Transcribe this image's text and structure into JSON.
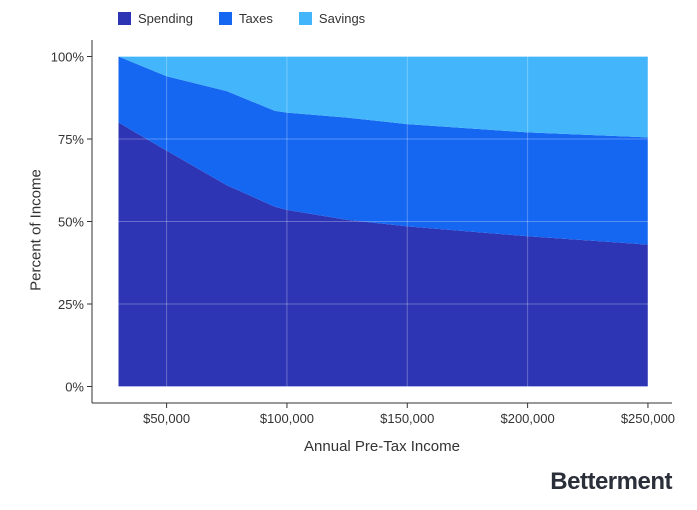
{
  "legend": {
    "items": [
      {
        "label": "Spending",
        "color": "#2d35b4"
      },
      {
        "label": "Taxes",
        "color": "#1567f2"
      },
      {
        "label": "Savings",
        "color": "#43b6fb"
      }
    ]
  },
  "brand": "Betterment",
  "chart_data": {
    "type": "area",
    "stacked": true,
    "normalized": true,
    "xlabel": "Annual Pre-Tax Income",
    "ylabel": "Percent of Income",
    "x": [
      30000,
      50000,
      75000,
      95000,
      100000,
      125000,
      150000,
      200000,
      250000
    ],
    "series": [
      {
        "name": "Spending",
        "color": "#2d35b4",
        "values": [
          80,
          71.5,
          61,
          54.5,
          53.5,
          50.5,
          48.5,
          45.5,
          43
        ]
      },
      {
        "name": "Taxes",
        "color": "#1567f2",
        "values": [
          20,
          22.5,
          28.5,
          29,
          29.5,
          31,
          31,
          31.5,
          32.5
        ]
      },
      {
        "name": "Savings",
        "color": "#43b6fb",
        "values": [
          0,
          6,
          10.5,
          16.5,
          17,
          18.5,
          20.5,
          23,
          24.5
        ]
      }
    ],
    "xticks": [
      50000,
      100000,
      150000,
      200000,
      250000
    ],
    "xtick_labels": [
      "$50,000",
      "$100,000",
      "$150,000",
      "$200,000",
      "$250,000"
    ],
    "yticks": [
      0,
      25,
      50,
      75,
      100
    ],
    "ytick_labels": [
      "0%",
      "25%",
      "50%",
      "75%",
      "100%"
    ],
    "xlim": [
      19000,
      260000
    ],
    "ylim": [
      -5,
      105
    ],
    "grid": true,
    "legend_position": "top-left"
  }
}
